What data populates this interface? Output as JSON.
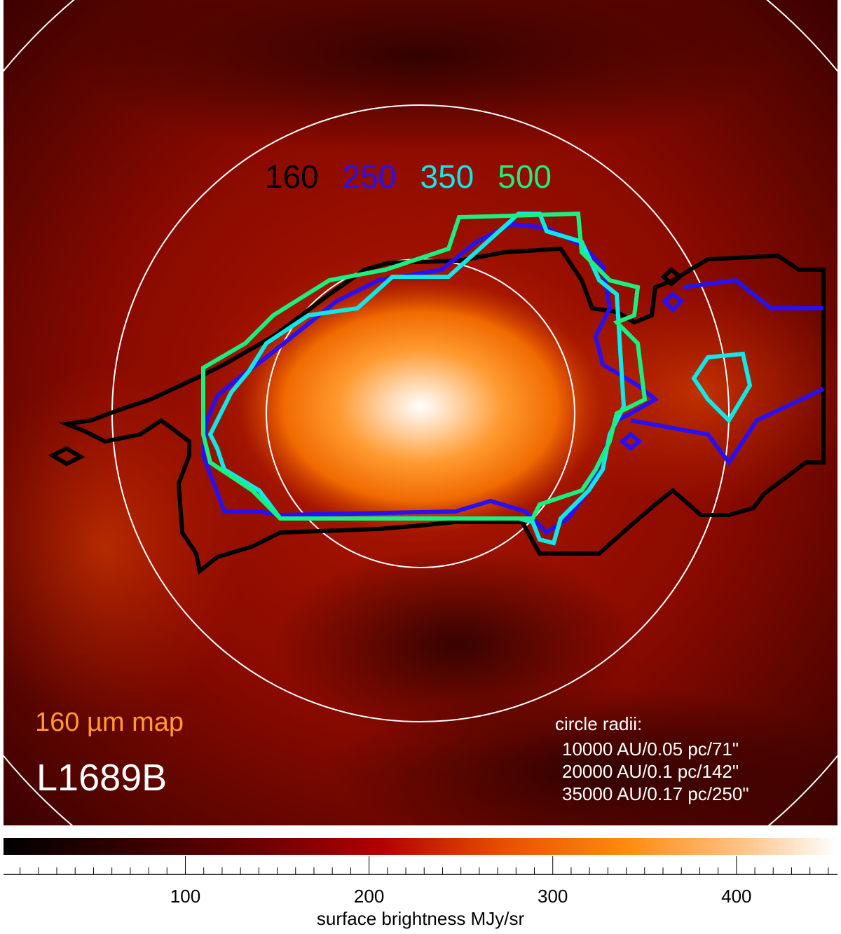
{
  "chart_data": {
    "type": "image",
    "contour_labels": [
      {
        "text": "160",
        "color": "#000000"
      },
      {
        "text": "250",
        "color": "#2a10f0"
      },
      {
        "text": "350",
        "color": "#10e8e8"
      },
      {
        "text": "500",
        "color": "#18f080"
      }
    ],
    "map_label": "160 µm map",
    "source_name": "L1689B",
    "radii_title": "circle radii:",
    "radii": [
      "10000 AU/0.05 pc/71\"",
      "20000 AU/0.1 pc/142\"",
      "35000 AU/0.17 pc/250\""
    ],
    "colorbar": {
      "label": "surface brightness MJy/sr",
      "lim": [
        1,
        455
      ],
      "ticks": [
        100,
        200,
        300,
        400
      ],
      "minor_ticks": [
        10,
        20,
        30,
        40,
        50,
        60,
        70,
        80,
        90,
        110,
        120,
        130,
        140,
        150,
        160,
        170,
        180,
        190,
        210,
        220,
        230,
        240,
        250,
        260,
        270,
        280,
        290,
        310,
        320,
        330,
        340,
        350,
        360,
        370,
        380,
        390,
        410,
        420,
        430,
        440,
        450
      ]
    }
  }
}
